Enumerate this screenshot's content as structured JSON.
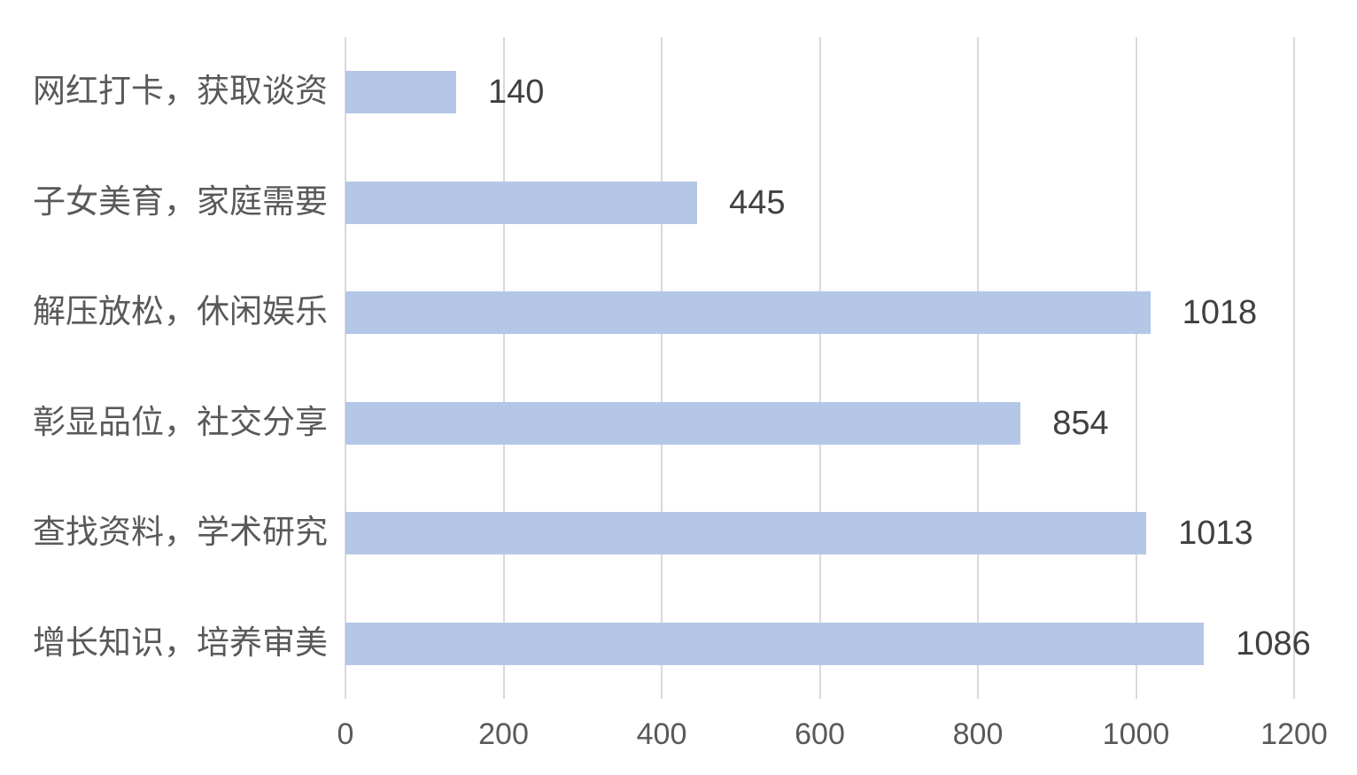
{
  "chart_data": {
    "type": "bar",
    "orientation": "horizontal",
    "title": "",
    "categories": [
      "网红打卡，获取谈资",
      "子女美育，家庭需要",
      "解压放松，休闲娱乐",
      "彰显品位，社交分享",
      "查找资料，学术研究",
      "增长知识，培养审美"
    ],
    "values": [
      140,
      445,
      1018,
      854,
      1013,
      1086
    ],
    "data_labels": [
      "140",
      "445",
      "1018",
      "854",
      "1013",
      "1086"
    ],
    "x_ticks": [
      0,
      200,
      400,
      600,
      800,
      1000,
      1200
    ],
    "xlabel": "",
    "ylabel": "",
    "xlim": [
      0,
      1200
    ],
    "grid": "vertical",
    "legend": "none",
    "colors": {
      "bar": "#b4c7e7",
      "gridline": "#d9d9d9",
      "category_text": "#595959",
      "tick_text": "#595959",
      "value_text": "#404040",
      "background": "#ffffff"
    }
  }
}
